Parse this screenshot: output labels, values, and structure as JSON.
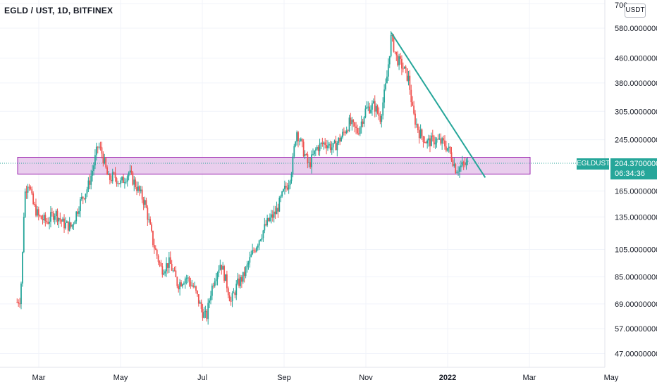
{
  "header": {
    "title": "EGLD / UST, 1D, BITFINEX"
  },
  "price_axis": {
    "unit": "USDT",
    "symbol": "EGLDUST",
    "last_price": "204.37000000",
    "countdown": "06:34:36"
  },
  "colors": {
    "up": "#26a69a",
    "down": "#ef5350",
    "zone_fill": "#e1bee7",
    "zone_stroke": "#9c27b0",
    "trendline": "#26a69a",
    "axis_bg": "#ffffff"
  },
  "chart_data": {
    "type": "candlestick",
    "scale": "log",
    "ylim": [
      41,
      700
    ],
    "yticks": [
      {
        "value": 700,
        "label": "700"
      },
      {
        "value": 580,
        "label": "580.00000000"
      },
      {
        "value": 460,
        "label": "460.00000000"
      },
      {
        "value": 380,
        "label": "380.00000000"
      },
      {
        "value": 305,
        "label": "305.00000000"
      },
      {
        "value": 245,
        "label": "245.00000000"
      },
      {
        "value": 165,
        "label": "165.00000000"
      },
      {
        "value": 135,
        "label": "135.00000000"
      },
      {
        "value": 105,
        "label": "105.00000000"
      },
      {
        "value": 85,
        "label": "85.00000000"
      },
      {
        "value": 69,
        "label": "69.00000000"
      },
      {
        "value": 57,
        "label": "57.00000000"
      },
      {
        "value": 47,
        "label": "47.00000000"
      }
    ],
    "xticks": [
      {
        "label": "Mar",
        "month": 2
      },
      {
        "label": "May",
        "month": 4
      },
      {
        "label": "Jul",
        "month": 6
      },
      {
        "label": "Sep",
        "month": 8
      },
      {
        "label": "Nov",
        "month": 10
      },
      {
        "label": "2022",
        "month": 12,
        "bold": true
      },
      {
        "label": "Mar",
        "month": 14
      },
      {
        "label": "May",
        "month": 16
      }
    ],
    "close_path": [
      [
        1.47,
        70
      ],
      [
        1.55,
        72
      ],
      [
        1.6,
        100
      ],
      [
        1.65,
        160
      ],
      [
        1.75,
        180
      ],
      [
        1.85,
        150
      ],
      [
        2.0,
        135
      ],
      [
        2.2,
        130
      ],
      [
        2.4,
        140
      ],
      [
        2.6,
        128
      ],
      [
        2.8,
        125
      ],
      [
        3.0,
        150
      ],
      [
        3.2,
        170
      ],
      [
        3.3,
        190
      ],
      [
        3.45,
        235
      ],
      [
        3.55,
        220
      ],
      [
        3.7,
        180
      ],
      [
        3.85,
        185
      ],
      [
        4.0,
        175
      ],
      [
        4.2,
        190
      ],
      [
        4.4,
        170
      ],
      [
        4.6,
        150
      ],
      [
        4.8,
        110
      ],
      [
        5.0,
        90
      ],
      [
        5.2,
        95
      ],
      [
        5.4,
        80
      ],
      [
        5.6,
        85
      ],
      [
        5.8,
        78
      ],
      [
        6.0,
        65
      ],
      [
        6.1,
        62
      ],
      [
        6.2,
        75
      ],
      [
        6.3,
        85
      ],
      [
        6.45,
        95
      ],
      [
        6.6,
        80
      ],
      [
        6.7,
        70
      ],
      [
        6.85,
        80
      ],
      [
        7.0,
        85
      ],
      [
        7.2,
        100
      ],
      [
        7.4,
        115
      ],
      [
        7.6,
        130
      ],
      [
        7.8,
        140
      ],
      [
        8.0,
        165
      ],
      [
        8.1,
        175
      ],
      [
        8.2,
        200
      ],
      [
        8.3,
        265
      ],
      [
        8.45,
        230
      ],
      [
        8.6,
        200
      ],
      [
        8.8,
        230
      ],
      [
        9.0,
        240
      ],
      [
        9.2,
        230
      ],
      [
        9.4,
        250
      ],
      [
        9.6,
        280
      ],
      [
        9.8,
        260
      ],
      [
        10.0,
        310
      ],
      [
        10.2,
        320
      ],
      [
        10.35,
        290
      ],
      [
        10.5,
        380
      ],
      [
        10.62,
        545
      ],
      [
        10.75,
        460
      ],
      [
        10.9,
        430
      ],
      [
        11.05,
        390
      ],
      [
        11.15,
        300
      ],
      [
        11.3,
        260
      ],
      [
        11.5,
        240
      ],
      [
        11.7,
        245
      ],
      [
        11.9,
        238
      ],
      [
        12.0,
        230
      ],
      [
        12.1,
        215
      ],
      [
        12.2,
        195
      ],
      [
        12.35,
        200
      ],
      [
        12.5,
        204
      ]
    ],
    "zone": {
      "x0": 1.5,
      "x1": 14.0,
      "y_low": 188,
      "y_high": 214
    },
    "dotted_line": 204.37,
    "trendline": [
      [
        10.62,
        560
      ],
      [
        12.92,
        183
      ]
    ],
    "last_price": 204.37
  }
}
